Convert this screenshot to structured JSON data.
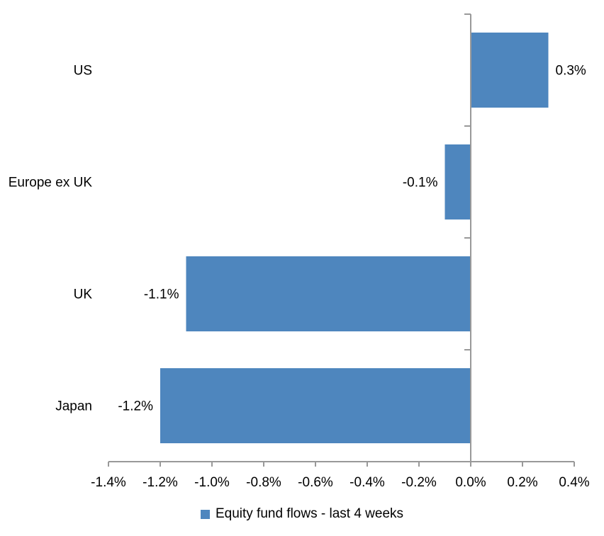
{
  "chart_data": {
    "type": "bar",
    "orientation": "horizontal",
    "title": "",
    "xlabel": "",
    "ylabel": "",
    "categories": [
      "US",
      "Europe ex UK",
      "UK",
      "Japan"
    ],
    "series": [
      {
        "name": "Equity fund flows - last 4 weeks",
        "values": [
          0.3,
          -0.1,
          -1.1,
          -1.2
        ],
        "value_labels": [
          "0.3%",
          "-0.1%",
          "-1.1%",
          "-1.2%"
        ]
      }
    ],
    "xlim": [
      -1.4,
      0.4
    ],
    "x_tick_step": 0.2,
    "x_tick_labels": [
      "-1.4%",
      "-1.2%",
      "-1.0%",
      "-0.8%",
      "-0.6%",
      "-0.4%",
      "-0.2%",
      "0.0%",
      "0.2%",
      "0.4%"
    ],
    "grid": false,
    "legend_position": "bottom",
    "colors": {
      "bar": "#4E86BE",
      "axis": "#999999",
      "text": "#000000",
      "background": "#ffffff"
    }
  },
  "legend": {
    "label": "Equity fund flows - last 4 weeks"
  }
}
